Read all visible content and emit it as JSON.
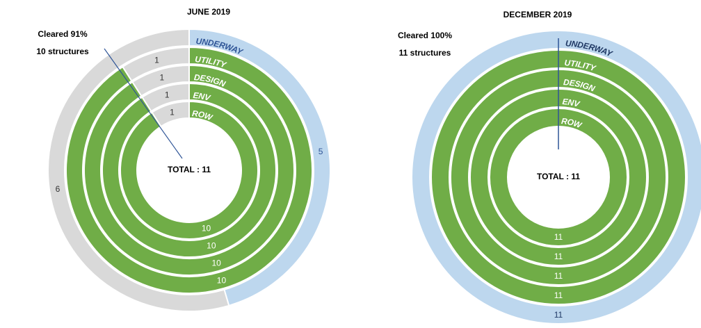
{
  "chart_data": [
    {
      "type": "donut",
      "title": "JUNE 2019",
      "annotation": [
        "Cleared 91%",
        "10 structures"
      ],
      "center_label": "TOTAL : 11",
      "series": [
        {
          "name": "ROW",
          "values": [
            10,
            1
          ],
          "colors": [
            "#70ad47",
            "#d9d9d9"
          ],
          "label_colors": [
            "#ffffff",
            "#333333"
          ]
        },
        {
          "name": "ENV",
          "values": [
            10,
            1
          ],
          "colors": [
            "#70ad47",
            "#d9d9d9"
          ],
          "label_colors": [
            "#ffffff",
            "#333333"
          ]
        },
        {
          "name": "DESIGN",
          "values": [
            10,
            1
          ],
          "colors": [
            "#70ad47",
            "#d9d9d9"
          ],
          "label_colors": [
            "#ffffff",
            "#333333"
          ]
        },
        {
          "name": "UTILITY",
          "values": [
            10,
            1
          ],
          "colors": [
            "#70ad47",
            "#d9d9d9"
          ],
          "label_colors": [
            "#ffffff",
            "#333333"
          ]
        },
        {
          "name": "UNDERWAY",
          "values": [
            5,
            6
          ],
          "colors": [
            "#bdd7ee",
            "#d9d9d9"
          ],
          "label_colors": [
            "#2f5597",
            "#333333"
          ]
        }
      ]
    },
    {
      "type": "donut",
      "title": "DECEMBER 2019",
      "annotation": [
        "Cleared 100%",
        "11 structures"
      ],
      "center_label": "TOTAL : 11",
      "series": [
        {
          "name": "ROW",
          "values": [
            11
          ],
          "colors": [
            "#70ad47"
          ],
          "label_colors": [
            "#ffffff"
          ]
        },
        {
          "name": "ENV",
          "values": [
            11
          ],
          "colors": [
            "#70ad47"
          ],
          "label_colors": [
            "#ffffff"
          ]
        },
        {
          "name": "DESIGN",
          "values": [
            11
          ],
          "colors": [
            "#70ad47"
          ],
          "label_colors": [
            "#ffffff"
          ]
        },
        {
          "name": "UTILITY",
          "values": [
            11
          ],
          "colors": [
            "#70ad47"
          ],
          "label_colors": [
            "#ffffff"
          ]
        },
        {
          "name": "UNDERWAY",
          "values": [
            11
          ],
          "colors": [
            "#bdd7ee"
          ],
          "label_colors": [
            "#1f3864"
          ]
        }
      ]
    }
  ]
}
